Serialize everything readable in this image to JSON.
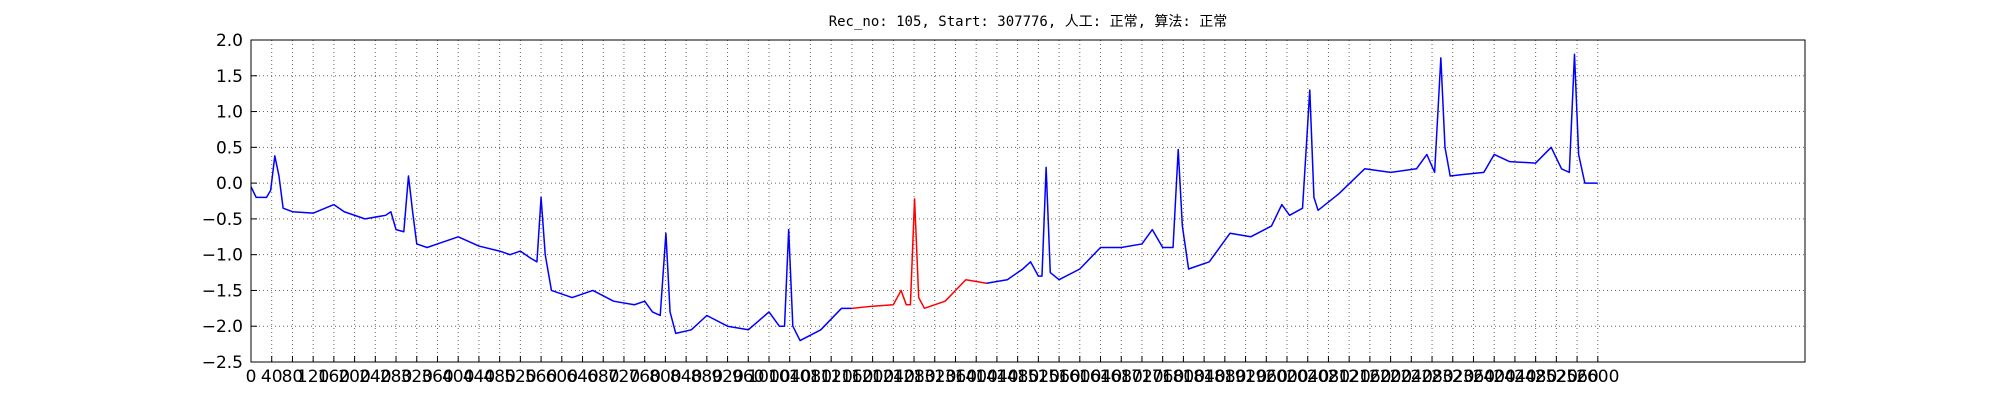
{
  "chart_data": {
    "type": "line",
    "title": "Rec_no: 105, Start: 307776, 人工: 正常, 算法: 正常",
    "x": [
      0,
      10,
      30,
      38,
      46,
      54,
      62,
      80,
      120,
      160,
      180,
      220,
      260,
      270,
      280,
      295,
      304,
      312,
      320,
      340,
      360,
      400,
      440,
      480,
      500,
      520,
      540,
      552,
      560,
      568,
      580,
      620,
      660,
      700,
      740,
      760,
      775,
      790,
      801,
      809,
      820,
      850,
      880,
      920,
      960,
      1000,
      1020,
      1030,
      1038,
      1046,
      1060,
      1100,
      1140,
      1160,
      1200,
      1240,
      1255,
      1265,
      1273,
      1281,
      1289,
      1300,
      1340,
      1380,
      1420,
      1460,
      1490,
      1505,
      1520,
      1527,
      1535,
      1543,
      1560,
      1600,
      1640,
      1680,
      1720,
      1740,
      1760,
      1780,
      1790,
      1798,
      1810,
      1850,
      1890,
      1930,
      1970,
      1990,
      2005,
      2030,
      2044,
      2052,
      2060,
      2100,
      2150,
      2200,
      2250,
      2270,
      2285,
      2297,
      2305,
      2315,
      2340,
      2380,
      2400,
      2430,
      2480,
      2510,
      2530,
      2545,
      2555,
      2563,
      2575,
      2600
    ],
    "series": [
      {
        "color": "#0000ff",
        "values": [
          -0.05,
          -0.2,
          -0.2,
          -0.1,
          0.38,
          0.1,
          -0.35,
          -0.4,
          -0.42,
          -0.3,
          -0.4,
          -0.5,
          -0.45,
          -0.4,
          -0.65,
          -0.68,
          0.1,
          -0.4,
          -0.85,
          -0.9,
          -0.85,
          -0.75,
          -0.88,
          -0.95,
          -1.0,
          -0.95,
          -1.05,
          -1.1,
          -0.2,
          -1.0,
          -1.5,
          -1.6,
          -1.5,
          -1.65,
          -1.7,
          -1.65,
          -1.8,
          -1.85,
          -0.7,
          -1.8,
          -2.1,
          -2.05,
          -1.85,
          -2.0,
          -2.05,
          -1.8,
          -2.0,
          -2.0,
          -0.65,
          -2.0,
          -2.2,
          -2.05,
          -1.75,
          -1.75,
          null,
          null,
          null,
          null,
          null,
          null,
          null,
          null,
          null,
          null,
          -1.4,
          -1.35,
          -1.2,
          -1.1,
          -1.3,
          -1.3,
          0.22,
          -1.25,
          -1.35,
          -1.2,
          -0.9,
          -0.9,
          -0.85,
          -0.65,
          -0.9,
          -0.9,
          0.47,
          -0.6,
          -1.2,
          -1.1,
          -0.7,
          -0.75,
          -0.6,
          -0.3,
          -0.45,
          -0.35,
          1.3,
          -0.2,
          -0.38,
          -0.15,
          0.2,
          0.15,
          0.2,
          0.4,
          0.15,
          1.75,
          0.5,
          0.1,
          0.12,
          0.15,
          0.4,
          0.3,
          0.28,
          0.5,
          0.2,
          0.15,
          1.8,
          0.4,
          0.0,
          0.0
        ]
      },
      {
        "color": "#ff0000",
        "values": [
          null,
          null,
          null,
          null,
          null,
          null,
          null,
          null,
          null,
          null,
          null,
          null,
          null,
          null,
          null,
          null,
          null,
          null,
          null,
          null,
          null,
          null,
          null,
          null,
          null,
          null,
          null,
          null,
          null,
          null,
          null,
          null,
          null,
          null,
          null,
          null,
          null,
          null,
          null,
          null,
          null,
          null,
          null,
          null,
          null,
          null,
          null,
          null,
          null,
          null,
          null,
          null,
          null,
          -1.75,
          -1.72,
          -1.7,
          -1.5,
          -1.7,
          -1.7,
          -0.22,
          -1.6,
          -1.75,
          -1.65,
          -1.35,
          -1.4,
          null,
          null,
          null,
          null,
          null,
          null,
          null,
          null,
          null,
          null,
          null,
          null,
          null,
          null,
          null,
          null,
          null,
          null,
          null,
          null,
          null,
          null,
          null,
          null,
          null,
          null,
          null,
          null,
          null,
          null,
          null,
          null,
          null,
          null,
          null,
          null,
          null,
          null,
          null,
          null,
          null,
          null,
          null,
          null,
          null,
          null,
          null,
          null,
          null
        ]
      }
    ],
    "xlim": [
      0,
      3000
    ],
    "xticks": [
      0,
      40,
      80,
      120,
      160,
      200,
      240,
      280,
      320,
      360,
      400,
      440,
      480,
      520,
      560,
      600,
      640,
      680,
      720,
      760,
      800,
      840,
      880,
      920,
      960,
      1000,
      1040,
      1080,
      1120,
      1160,
      1200,
      1240,
      1280,
      1320,
      1360,
      1400,
      1440,
      1480,
      1520,
      1560,
      1600,
      1640,
      1680,
      1720,
      1760,
      1800,
      1840,
      1880,
      1920,
      1960,
      2000,
      2040,
      2080,
      2120,
      2160,
      2200,
      2240,
      2280,
      2320,
      2360,
      2400,
      2440,
      2480,
      2520,
      2560,
      2600
    ],
    "ylim": [
      -2.5,
      2.0
    ],
    "yticks": [
      {
        "value": -2.5,
        "label": "−2.5"
      },
      {
        "value": -2.0,
        "label": "−2.0"
      },
      {
        "value": -1.5,
        "label": "−1.5"
      },
      {
        "value": -1.0,
        "label": "−1.0"
      },
      {
        "value": -0.5,
        "label": "−0.5"
      },
      {
        "value": 0.0,
        "label": "0.0"
      },
      0.5,
      {
        "value": 1.0,
        "label": "1.0"
      },
      1.5,
      {
        "value": 2.0,
        "label": "2.0"
      }
    ],
    "grid": true
  }
}
